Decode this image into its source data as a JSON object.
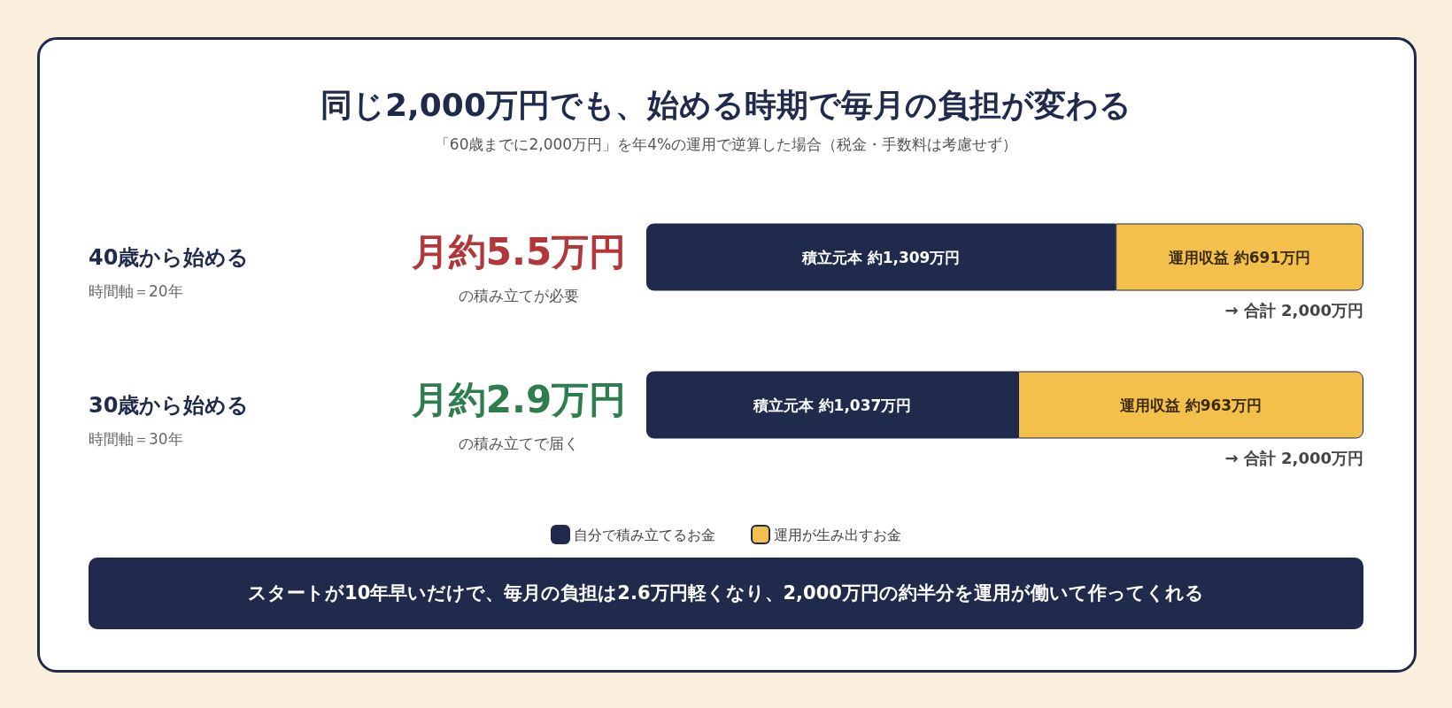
{
  "chart_data": {
    "type": "bar",
    "orientation": "horizontal",
    "stacked": true,
    "title": "同じ2,000万円でも、始める時期で毎月の負担が変わる",
    "subtitle": "「60歳までに2,000万円」を年4%の運用で逆算した場合（税金・手数料は考慮せず）",
    "categories": [
      "40歳から始める",
      "30歳から始める"
    ],
    "series": [
      {
        "name": "自分で積み立てるお金",
        "color": "#1f2a4d",
        "values": [
          1309,
          1037
        ],
        "value_labels": [
          "積立元本 約1,309万円",
          "積立元本 約1,037万円"
        ]
      },
      {
        "name": "運用が生み出すお金",
        "color": "#f4c04c",
        "values": [
          691,
          963
        ],
        "value_labels": [
          "運用収益 約691万円",
          "運用収益 約963万円"
        ]
      }
    ],
    "xlim": [
      0,
      2000
    ],
    "totals": [
      "→ 合計 2,000万円",
      "→ 合計 2,000万円"
    ],
    "annotations": [
      "時間軸＝20年",
      "月約5.5万円",
      "の積み立てが必要",
      "時間軸＝30年",
      "月約2.9万円",
      "の積み立てで届く",
      "スタートが10年早いだけで、毎月の負担は2.6万円軽くなり、2,000万円の約半分を運用が働いて作ってくれる"
    ],
    "legend": "bottom",
    "tick_labels": "y"
  }
}
